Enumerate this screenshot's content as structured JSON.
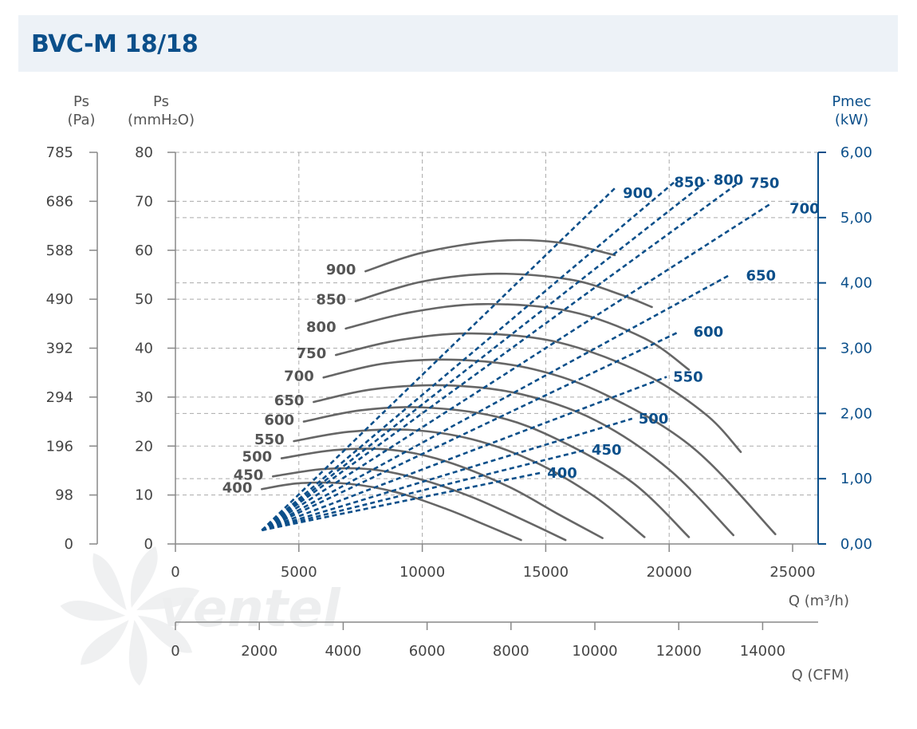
{
  "page": {
    "title": "BVC-M 18/18",
    "watermark": "ventel"
  },
  "colors": {
    "title": "#0b4f8a",
    "header_bg": "#edf2f7",
    "pressure_curves": "#666666",
    "power_curves": "#0b4f8a",
    "grid": "#aaaaaa"
  },
  "chart_data": {
    "type": "line",
    "xlabel": "Q (m³/h)",
    "xlabel_secondary": "Q (CFM)",
    "ylabel_pa": [
      "Ps",
      "(Pa)"
    ],
    "ylabel_mm": [
      "Ps",
      "(mmH₂O)"
    ],
    "ylabel_right": [
      "Pmec",
      "(kW)"
    ],
    "xlim": [
      0,
      25000
    ],
    "ylim_mm": [
      0,
      80
    ],
    "ylim_kw": [
      0,
      6
    ],
    "x_ticks": [
      "0",
      "5000",
      "10000",
      "15000",
      "20000",
      "25000"
    ],
    "x_ticks_cfm": [
      "0",
      "2000",
      "4000",
      "6000",
      "8000",
      "10000",
      "12000",
      "14000"
    ],
    "y_ticks_mm": [
      "0",
      "10",
      "20",
      "30",
      "40",
      "50",
      "60",
      "70",
      "80"
    ],
    "y_ticks_pa": [
      "0",
      "98",
      "196",
      "294",
      "392",
      "490",
      "588",
      "686",
      "785"
    ],
    "y_ticks_kw": [
      "0,00",
      "1,00",
      "2,00",
      "3,00",
      "4,00",
      "5,00",
      "6,00"
    ],
    "grid": "dashed",
    "pressure_series": [
      {
        "name": "400",
        "x": [
          3500,
          5000,
          7000,
          9000,
          11000,
          12500,
          14000
        ],
        "y": [
          11.2,
          12.4,
          12.3,
          10.5,
          7.1,
          4.0,
          0.8
        ]
      },
      {
        "name": "450",
        "x": [
          3950,
          6000,
          8000,
          10000,
          12000,
          14000,
          15800
        ],
        "y": [
          13.8,
          15.3,
          15.2,
          13.1,
          9.6,
          5.1,
          0.8
        ]
      },
      {
        "name": "500",
        "x": [
          4300,
          6500,
          8800,
          11000,
          13500,
          15500,
          17300
        ],
        "y": [
          17.5,
          19.2,
          19.2,
          16.8,
          11.7,
          6.1,
          1.2
        ]
      },
      {
        "name": "550",
        "x": [
          4800,
          7000,
          9500,
          12000,
          14500,
          17000,
          19000
        ],
        "y": [
          21.0,
          22.9,
          23.3,
          21.4,
          16.9,
          9.6,
          1.4
        ]
      },
      {
        "name": "600",
        "x": [
          5200,
          7500,
          10000,
          13000,
          15500,
          18500,
          20800
        ],
        "y": [
          25.0,
          27.3,
          27.9,
          26.0,
          21.3,
          12.6,
          1.4
        ]
      },
      {
        "name": "650",
        "x": [
          5600,
          8000,
          11000,
          14000,
          17000,
          20000,
          22600
        ],
        "y": [
          29.0,
          31.6,
          32.4,
          30.6,
          25.3,
          15.2,
          1.8
        ]
      },
      {
        "name": "700",
        "x": [
          6000,
          8500,
          11500,
          14500,
          17500,
          21000,
          24300
        ],
        "y": [
          34.0,
          36.9,
          37.6,
          35.7,
          30.3,
          19.5,
          2.0
        ]
      },
      {
        "name": "750",
        "x": [
          6500,
          9000,
          12000,
          15500,
          19000,
          21500,
          22900
        ],
        "y": [
          38.6,
          41.6,
          43.0,
          41.2,
          34.7,
          26.4,
          18.8
        ]
      },
      {
        "name": "800",
        "x": [
          6900,
          9500,
          12500,
          16000,
          19000,
          20800
        ],
        "y": [
          44.0,
          47.3,
          49.0,
          47.5,
          42.0,
          35.6
        ]
      },
      {
        "name": "850",
        "x": [
          7300,
          10000,
          13000,
          16000,
          18000,
          19300
        ],
        "y": [
          49.6,
          53.6,
          55.2,
          54.0,
          51.0,
          48.4
        ]
      },
      {
        "name": "900",
        "x": [
          7700,
          10000,
          13000,
          15500,
          17800
        ],
        "y": [
          55.7,
          59.5,
          61.9,
          61.6,
          59.0
        ]
      }
    ],
    "power_series": [
      {
        "name": "400",
        "x": [
          3500,
          14800
        ],
        "y": [
          0.21,
          1.09
        ]
      },
      {
        "name": "450",
        "x": [
          3500,
          16600
        ],
        "y": [
          0.21,
          1.44
        ]
      },
      {
        "name": "500",
        "x": [
          3500,
          18500
        ],
        "y": [
          0.21,
          1.92
        ]
      },
      {
        "name": "550",
        "x": [
          3500,
          19900
        ],
        "y": [
          0.21,
          2.56
        ]
      },
      {
        "name": "600",
        "x": [
          3500,
          20400
        ],
        "y": [
          0.21,
          3.25
        ]
      },
      {
        "name": "650",
        "x": [
          3500,
          22400
        ],
        "y": [
          0.21,
          4.11
        ]
      },
      {
        "name": "700",
        "x": [
          3500,
          24100
        ],
        "y": [
          0.21,
          5.21
        ]
      },
      {
        "name": "750",
        "x": [
          3500,
          22800
        ],
        "y": [
          0.21,
          5.53
        ]
      },
      {
        "name": "800",
        "x": [
          3500,
          21600
        ],
        "y": [
          0.21,
          5.58
        ]
      },
      {
        "name": "850",
        "x": [
          3500,
          20200
        ],
        "y": [
          0.21,
          5.54
        ]
      },
      {
        "name": "900",
        "x": [
          3500,
          17800
        ],
        "y": [
          0.21,
          5.45
        ]
      }
    ]
  }
}
